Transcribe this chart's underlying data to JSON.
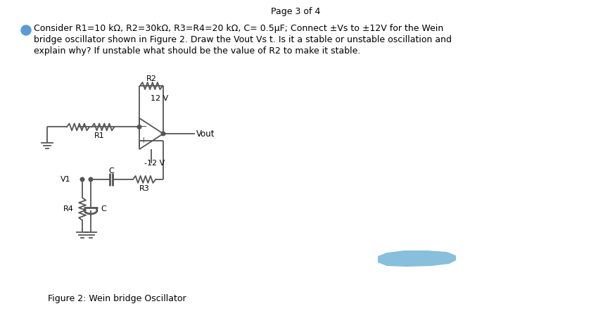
{
  "page_header": "Page 3 of 4",
  "bullet_color": "#5b9bd5",
  "text_line1": "Consider R1=10 kΩ, R2=30kΩ, R3=R4=20 kΩ, C= 0.5µF; Connect ±Vs to ±12V for the Wein",
  "text_line2": "bridge oscillator shown in Figure 2. Draw the Vout Vs t. Is it a stable or unstable oscillation and",
  "text_line3": "explain why? If unstable what should be the value of R2 to make it stable.",
  "highlight_color": "#7ab8d9",
  "figure_caption": "Figure 2: Wein bridge Oscillator",
  "bg_color": "#ffffff",
  "text_color": "#000000",
  "circuit_color": "#555555",
  "circuit_lw": 1.3
}
